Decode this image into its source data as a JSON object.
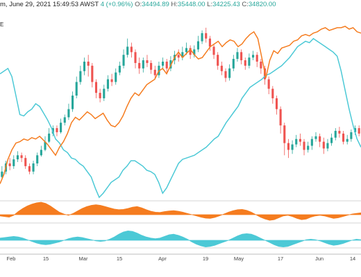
{
  "header": {
    "text_prefix": "m, June 29, 2021 15:49:53 AWST",
    "change": "4 (+0.96%)",
    "open_label": "O:",
    "open": "34494.89",
    "high_label": "H:",
    "high": "35448.00",
    "low_label": "L:",
    "low": "34225.43",
    "close_label": "C:",
    "close": "34820.00"
  },
  "side_tag": "E",
  "colors": {
    "up": "#26a69a",
    "down": "#ef5350",
    "orange": "#f57c1f",
    "cyan": "#4cc9d6",
    "grid": "#e8e8e8"
  },
  "chart_data": {
    "type": "candlestick+line",
    "x_ticks": [
      "Feb",
      "15",
      "Mar",
      "15",
      "Apr",
      "19",
      "May",
      "17",
      "Jun",
      "14"
    ],
    "candles": [
      [
        0.7,
        0.74,
        0.78,
        0.68
      ],
      [
        0.74,
        0.8,
        0.82,
        0.72
      ],
      [
        0.8,
        0.78,
        0.84,
        0.75
      ],
      [
        0.78,
        0.83,
        0.86,
        0.76
      ],
      [
        0.83,
        0.86,
        0.89,
        0.81
      ],
      [
        0.86,
        0.84,
        0.88,
        0.81
      ],
      [
        0.84,
        0.78,
        0.86,
        0.76
      ],
      [
        0.78,
        0.74,
        0.8,
        0.72
      ],
      [
        0.74,
        0.8,
        0.82,
        0.72
      ],
      [
        0.8,
        0.86,
        0.88,
        0.78
      ],
      [
        0.86,
        0.9,
        0.93,
        0.85
      ],
      [
        0.9,
        0.96,
        1.0,
        0.89
      ],
      [
        0.96,
        1.02,
        1.06,
        0.95
      ],
      [
        1.02,
        1.06,
        1.08,
        1.0
      ],
      [
        1.06,
        1.03,
        1.08,
        1.0
      ],
      [
        1.03,
        1.1,
        1.13,
        1.02
      ],
      [
        1.1,
        1.14,
        1.16,
        1.08
      ],
      [
        1.14,
        1.2,
        1.24,
        1.12
      ],
      [
        1.2,
        1.3,
        1.33,
        1.18
      ],
      [
        1.3,
        1.4,
        1.44,
        1.28
      ],
      [
        1.4,
        1.48,
        1.52,
        1.38
      ],
      [
        1.48,
        1.55,
        1.58,
        1.45
      ],
      [
        1.55,
        1.52,
        1.6,
        1.44
      ],
      [
        1.52,
        1.4,
        1.54,
        1.36
      ],
      [
        1.4,
        1.32,
        1.42,
        1.28
      ],
      [
        1.32,
        1.28,
        1.35,
        1.25
      ],
      [
        1.28,
        1.35,
        1.38,
        1.26
      ],
      [
        1.35,
        1.42,
        1.45,
        1.33
      ],
      [
        1.42,
        1.4,
        1.46,
        1.37
      ],
      [
        1.4,
        1.47,
        1.5,
        1.38
      ],
      [
        1.47,
        1.52,
        1.55,
        1.45
      ],
      [
        1.52,
        1.6,
        1.64,
        1.5
      ],
      [
        1.6,
        1.66,
        1.72,
        1.58
      ],
      [
        1.66,
        1.62,
        1.69,
        1.58
      ],
      [
        1.62,
        1.54,
        1.64,
        1.5
      ],
      [
        1.54,
        1.5,
        1.58,
        1.46
      ],
      [
        1.5,
        1.56,
        1.58,
        1.47
      ],
      [
        1.56,
        1.54,
        1.6,
        1.51
      ],
      [
        1.54,
        1.49,
        1.56,
        1.46
      ],
      [
        1.49,
        1.45,
        1.52,
        1.42
      ],
      [
        1.45,
        1.52,
        1.55,
        1.43
      ],
      [
        1.52,
        1.55,
        1.58,
        1.49
      ],
      [
        1.55,
        1.5,
        1.57,
        1.46
      ],
      [
        1.5,
        1.56,
        1.59,
        1.48
      ],
      [
        1.56,
        1.6,
        1.63,
        1.53
      ],
      [
        1.6,
        1.58,
        1.64,
        1.55
      ],
      [
        1.58,
        1.62,
        1.66,
        1.56
      ],
      [
        1.62,
        1.65,
        1.69,
        1.6
      ],
      [
        1.65,
        1.6,
        1.67,
        1.57
      ],
      [
        1.6,
        1.64,
        1.67,
        1.58
      ],
      [
        1.64,
        1.7,
        1.74,
        1.62
      ],
      [
        1.7,
        1.76,
        1.78,
        1.68
      ],
      [
        1.76,
        1.72,
        1.8,
        1.69
      ],
      [
        1.72,
        1.66,
        1.74,
        1.63
      ],
      [
        1.66,
        1.6,
        1.68,
        1.57
      ],
      [
        1.6,
        1.52,
        1.62,
        1.49
      ],
      [
        1.52,
        1.48,
        1.55,
        1.45
      ],
      [
        1.48,
        1.43,
        1.5,
        1.4
      ],
      [
        1.43,
        1.5,
        1.53,
        1.41
      ],
      [
        1.5,
        1.57,
        1.6,
        1.48
      ],
      [
        1.57,
        1.62,
        1.65,
        1.55
      ],
      [
        1.62,
        1.56,
        1.64,
        1.53
      ],
      [
        1.56,
        1.52,
        1.58,
        1.49
      ],
      [
        1.52,
        1.58,
        1.61,
        1.5
      ],
      [
        1.58,
        1.6,
        1.63,
        1.56
      ],
      [
        1.6,
        1.55,
        1.62,
        1.51
      ],
      [
        1.55,
        1.5,
        1.57,
        1.46
      ],
      [
        1.5,
        1.42,
        1.52,
        1.38
      ],
      [
        1.42,
        1.35,
        1.44,
        1.31
      ],
      [
        1.35,
        1.28,
        1.37,
        1.24
      ],
      [
        1.28,
        1.2,
        1.3,
        1.16
      ],
      [
        1.2,
        1.08,
        1.22,
        1.02
      ],
      [
        1.08,
        0.95,
        1.1,
        0.86
      ],
      [
        0.95,
        0.9,
        0.98,
        0.84
      ],
      [
        0.9,
        0.94,
        0.97,
        0.87
      ],
      [
        0.94,
        0.98,
        1.01,
        0.92
      ],
      [
        0.98,
        0.96,
        1.02,
        0.93
      ],
      [
        0.96,
        0.9,
        0.98,
        0.86
      ],
      [
        0.9,
        0.93,
        0.96,
        0.88
      ],
      [
        0.93,
        0.98,
        1.0,
        0.9
      ],
      [
        0.98,
        1.0,
        1.03,
        0.96
      ],
      [
        1.0,
        0.96,
        1.02,
        0.92
      ],
      [
        0.96,
        0.91,
        0.99,
        0.87
      ],
      [
        0.91,
        0.95,
        0.98,
        0.89
      ],
      [
        0.95,
        0.99,
        1.02,
        0.93
      ],
      [
        0.99,
        1.04,
        1.06,
        0.97
      ],
      [
        1.04,
        1.02,
        1.07,
        0.99
      ],
      [
        1.02,
        0.96,
        1.04,
        0.94
      ],
      [
        0.96,
        0.98,
        1.01,
        0.94
      ],
      [
        0.98,
        1.03,
        1.05,
        0.96
      ],
      [
        1.03,
        1.06,
        1.08,
        1.01
      ],
      [
        1.06,
        1.02,
        1.08,
        1.0
      ]
    ],
    "orange_line": [
      0.65,
      0.72,
      0.83,
      0.9,
      0.95,
      0.96,
      0.98,
      0.97,
      0.99,
      0.98,
      1.0,
      0.97,
      0.94,
      0.9,
      0.86,
      0.92,
      0.96,
      1.02,
      1.1,
      1.14,
      1.12,
      1.15,
      1.18,
      1.16,
      1.13,
      1.15,
      1.17,
      1.12,
      1.08,
      1.07,
      1.1,
      1.15,
      1.22,
      1.28,
      1.32,
      1.3,
      1.34,
      1.38,
      1.4,
      1.42,
      1.48,
      1.5,
      1.46,
      1.52,
      1.58,
      1.62,
      1.58,
      1.61,
      1.64,
      1.6,
      1.57,
      1.58,
      1.62,
      1.66,
      1.68,
      1.7,
      1.66,
      1.69,
      1.71,
      1.7,
      1.66,
      1.68,
      1.72,
      1.75,
      1.77,
      1.72,
      1.58,
      1.43,
      1.56,
      1.63,
      1.61,
      1.65,
      1.66,
      1.67,
      1.7,
      1.71,
      1.74,
      1.75,
      1.74,
      1.76,
      1.77,
      1.79,
      1.8,
      1.78,
      1.79,
      1.8,
      1.8,
      1.81,
      1.79,
      1.8,
      1.77,
      1.76
    ],
    "cyan_line": [
      1.46,
      1.48,
      1.5,
      1.44,
      1.3,
      1.16,
      1.15,
      1.18,
      1.2,
      1.24,
      1.22,
      1.17,
      1.12,
      1.06,
      0.98,
      0.95,
      0.9,
      0.88,
      0.84,
      0.83,
      0.8,
      0.78,
      0.74,
      0.7,
      0.62,
      0.55,
      0.58,
      0.62,
      0.66,
      0.68,
      0.7,
      0.75,
      0.78,
      0.82,
      0.82,
      0.8,
      0.78,
      0.75,
      0.74,
      0.72,
      0.66,
      0.58,
      0.62,
      0.68,
      0.74,
      0.8,
      0.83,
      0.84,
      0.85,
      0.86,
      0.88,
      0.9,
      0.92,
      0.95,
      0.98,
      1.0,
      1.05,
      1.1,
      1.14,
      1.18,
      1.22,
      1.28,
      1.32,
      1.36,
      1.38,
      1.4,
      1.42,
      1.45,
      1.46,
      1.48,
      1.5,
      1.52,
      1.55,
      1.58,
      1.62,
      1.66,
      1.68,
      1.7,
      1.69,
      1.72,
      1.7,
      1.68,
      1.66,
      1.64,
      1.62,
      1.59,
      1.48,
      1.34,
      1.2,
      1.08,
      0.98,
      0.92
    ],
    "osc_orange": [
      -0.1,
      -0.15,
      -0.2,
      -0.05,
      0.25,
      0.5,
      0.7,
      0.85,
      0.95,
      1.0,
      0.9,
      0.7,
      0.45,
      0.2,
      0.05,
      -0.05,
      0.1,
      0.3,
      0.5,
      0.65,
      0.75,
      0.8,
      0.75,
      0.65,
      0.55,
      0.45,
      0.4,
      0.42,
      0.5,
      0.6,
      0.65,
      0.55,
      0.4,
      0.28,
      0.2,
      0.18,
      0.25,
      0.3,
      0.32,
      0.28,
      0.2,
      0.1,
      0.0,
      -0.1,
      -0.2,
      -0.28,
      -0.3,
      -0.22,
      -0.1,
      0.05,
      0.2,
      0.32,
      0.4,
      0.42,
      0.35,
      0.2,
      0.0,
      -0.2,
      -0.35,
      -0.45,
      -0.4,
      -0.25,
      -0.1,
      -0.05,
      -0.15,
      -0.3,
      -0.4,
      -0.35,
      -0.2,
      -0.1,
      -0.05,
      -0.1,
      -0.2,
      -0.3,
      -0.25,
      -0.15,
      -0.05,
      0.05,
      0.1,
      0.15
    ],
    "osc_cyan": [
      0.2,
      0.25,
      0.3,
      0.35,
      0.3,
      0.2,
      0.05,
      -0.1,
      -0.25,
      -0.35,
      -0.4,
      -0.35,
      -0.25,
      -0.15,
      0.0,
      0.15,
      0.25,
      0.3,
      0.25,
      0.15,
      0.05,
      -0.05,
      -0.1,
      -0.05,
      0.1,
      0.3,
      0.55,
      0.75,
      0.85,
      0.8,
      0.65,
      0.45,
      0.3,
      0.2,
      0.15,
      0.2,
      0.35,
      0.5,
      0.55,
      0.45,
      0.3,
      0.1,
      -0.15,
      -0.35,
      -0.5,
      -0.6,
      -0.55,
      -0.45,
      -0.3,
      -0.15,
      0.0,
      0.2,
      0.4,
      0.55,
      0.6,
      0.55,
      0.4,
      0.2,
      0.0,
      -0.2,
      -0.4,
      -0.55,
      -0.6,
      -0.55,
      -0.4,
      -0.25,
      -0.1,
      0.05,
      0.1,
      0.05,
      -0.05,
      -0.2,
      -0.35,
      -0.45,
      -0.4,
      -0.3,
      -0.15,
      0.0,
      0.1,
      0.05
    ]
  }
}
